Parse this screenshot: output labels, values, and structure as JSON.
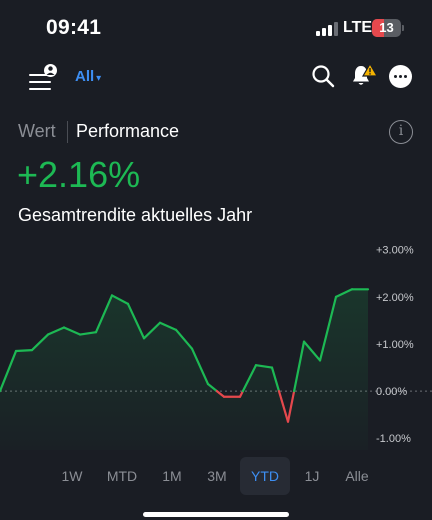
{
  "status_bar": {
    "time": "09:41",
    "network": "LTE",
    "battery": "13",
    "signal_bars_active": 3,
    "signal_bars_total": 4
  },
  "nav": {
    "filter_label": "All",
    "filter_caret": "▾",
    "icons": [
      "menu-user-icon",
      "search-icon",
      "bell-alert-icon",
      "more-icon"
    ],
    "alert_color": "#f5b301"
  },
  "tabs": {
    "wert": "Wert",
    "performance": "Performance",
    "info": "i"
  },
  "summary": {
    "value": "+2.16%",
    "label": "Gesamtrendite aktuelles Jahr",
    "positive_color": "#1db954"
  },
  "chart_data": {
    "type": "line",
    "y_ticks": [
      "+3.00%",
      "+2.00%",
      "+1.00%",
      "0.00%",
      "-1.00%"
    ],
    "y_tick_values": [
      3,
      2,
      1,
      0,
      -1
    ],
    "ylim": [
      -1.25,
      3.1
    ],
    "baseline": 0,
    "grid": false,
    "positive_color": "#1db954",
    "negative_color": "#e5484d",
    "values": [
      0.0,
      0.85,
      0.87,
      1.2,
      1.35,
      1.2,
      1.25,
      2.03,
      1.85,
      1.12,
      1.45,
      1.3,
      0.9,
      0.15,
      -0.12,
      -0.12,
      0.55,
      0.5,
      -0.65,
      1.05,
      0.65,
      2.0,
      2.16,
      2.16
    ]
  },
  "range_selector": {
    "options": [
      "1W",
      "MTD",
      "1M",
      "3M",
      "YTD",
      "1J",
      "Alle"
    ],
    "active": "YTD",
    "accent_color": "#3d8ef2"
  }
}
